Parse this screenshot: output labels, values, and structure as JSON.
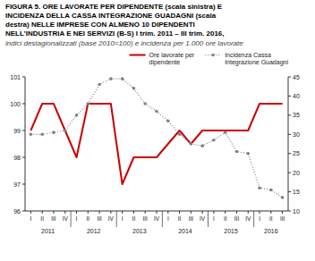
{
  "chart_data": {
    "type": "line",
    "title": "FIGURA 5. ORE LAVORATE PER DIPENDENTE (scala sinistra) E\nINCIDENZA DELLA CASSA INTEGRAZIONE GUADAGNI (scala\ndestra) NELLE IMPRESE CON ALMENO 10 DIPENDENTI\nNELL’INDUSTRIA E NEI SERVIZI (B-S) I trim. 2011 – III trim. 2016,",
    "subtitle": "indici destagionalizzati (base 2010=100) e incidenza per 1.000 ore lavorate",
    "categories": [
      "I",
      "II",
      "III",
      "IV",
      "I",
      "II",
      "III",
      "IV",
      "I",
      "II",
      "III",
      "IV",
      "I",
      "II",
      "III",
      "IV",
      "I",
      "II",
      "III",
      "IV",
      "I",
      "II",
      "III"
    ],
    "annotations": [
      "2011",
      "2012",
      "2013",
      "2014",
      "2015",
      "2016"
    ],
    "series": [
      {
        "name": "Ore lavorate per\ndipendente",
        "color": "#cc0000",
        "line_style": "solid",
        "values": [
          99.0,
          100.0,
          100.0,
          99.0,
          98.0,
          100.0,
          100.0,
          100.0,
          97.0,
          98.0,
          98.0,
          98.0,
          98.5,
          99.0,
          98.5,
          99.0,
          99.0,
          99.0,
          99.0,
          99.0,
          100.0,
          100.0,
          100.0
        ]
      },
      {
        "name": "Incidenza Cassa\nIntegrazione Guadagni",
        "color": "#808080",
        "axis": "y2",
        "marker": "circle",
        "line_style": "dotted",
        "values": [
          30.0,
          30.0,
          30.5,
          31.0,
          35.0,
          38.0,
          43.0,
          44.5,
          44.5,
          42.0,
          38.0,
          36.0,
          33.5,
          30.0,
          27.5,
          27.0,
          28.5,
          30.5,
          25.5,
          25.0,
          16.0,
          15.5,
          13.5
        ]
      }
    ],
    "ylim": [
      96,
      101
    ],
    "yticks": [
      96,
      97,
      98,
      99,
      100,
      101
    ],
    "y2lim": [
      10,
      45
    ],
    "y2ticks": [
      10,
      15,
      20,
      25,
      30,
      35,
      40,
      45
    ],
    "grid": false,
    "legend": "upper right"
  }
}
